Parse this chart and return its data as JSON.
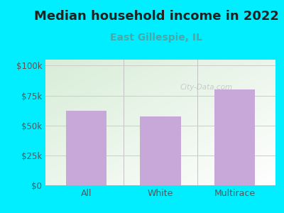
{
  "title": "Median household income in 2022",
  "subtitle": "East Gillespie, IL",
  "categories": [
    "All",
    "White",
    "Multirace"
  ],
  "values": [
    62000,
    57500,
    80000
  ],
  "bar_color": "#c8a8d8",
  "outer_bg": "#00eeff",
  "yticks": [
    0,
    25000,
    50000,
    75000,
    100000
  ],
  "ytick_labels": [
    "$0",
    "$25k",
    "$50k",
    "$75k",
    "$100k"
  ],
  "ylim": [
    0,
    105000
  ],
  "title_fontsize": 13,
  "subtitle_fontsize": 10,
  "subtitle_color": "#44aaaa",
  "axis_label_color": "#555555",
  "grid_color": "#cccccc",
  "watermark": "City-Data.com",
  "bg_color_topleft": "#d8edd8",
  "bg_color_bottomright": "#ffffff"
}
